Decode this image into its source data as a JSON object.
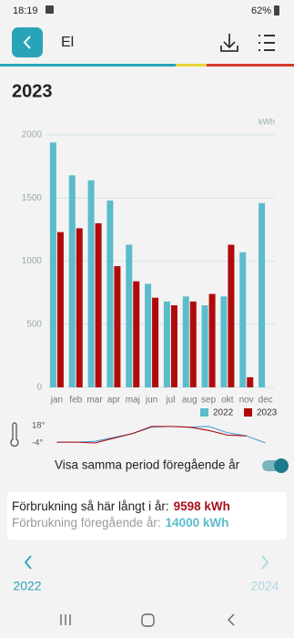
{
  "status": {
    "time": "18:19",
    "battery": "62%"
  },
  "header": {
    "title": "El"
  },
  "year": "2023",
  "chart_data": [
    {
      "type": "bar",
      "y_label": "kWh",
      "categories": [
        "jan",
        "feb",
        "mar",
        "apr",
        "maj",
        "jun",
        "jul",
        "aug",
        "sep",
        "okt",
        "nov",
        "dec"
      ],
      "series": [
        {
          "name": "2022",
          "color": "#5bbccb",
          "values": [
            1940,
            1680,
            1640,
            1480,
            1130,
            820,
            680,
            720,
            650,
            720,
            1070,
            1460
          ]
        },
        {
          "name": "2023",
          "color": "#b00a0a",
          "values": [
            1230,
            1260,
            1300,
            960,
            840,
            710,
            650,
            680,
            740,
            1130,
            80,
            null
          ]
        }
      ],
      "ylim": [
        0,
        2000
      ],
      "yticks": [
        0,
        500,
        1000,
        1500,
        2000
      ],
      "grid": true,
      "legend": "top-right"
    },
    {
      "type": "line",
      "series": [
        {
          "color": "#4a9fd8",
          "values": [
            -3,
            -3,
            -2,
            3,
            8,
            16,
            17,
            16,
            17,
            9,
            5,
            -4
          ]
        },
        {
          "color": "#b00a0a",
          "values": [
            -3,
            -3,
            -4,
            2,
            8,
            17,
            17,
            16,
            12,
            6,
            5,
            null
          ]
        }
      ],
      "ylim": [
        -4,
        18
      ],
      "yticks": [
        {
          "value": 18,
          "label": "18°"
        },
        {
          "value": -4,
          "label": "-4°"
        }
      ]
    }
  ],
  "toggle": {
    "label": "Visa samma period föregående år"
  },
  "info": {
    "current_label": "Förbrukning så här långt i år:",
    "current_value": "9598 kWh",
    "previous_label": "Förbrukning föregående år:",
    "previous_value": "14000 kWh"
  },
  "nav": {
    "prev": "2022",
    "next": "2024"
  }
}
